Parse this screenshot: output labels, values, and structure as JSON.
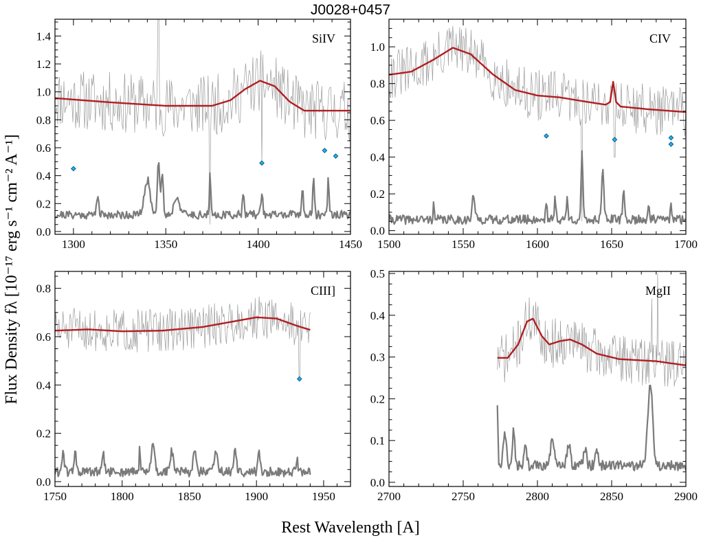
{
  "figure": {
    "title": "J0028+0457",
    "xlabel": "Rest Wavelength [A]",
    "ylabel": "Flux Density fλ [10⁻¹⁷ erg s⁻¹ cm⁻² A⁻¹]",
    "colors": {
      "spectrum": "#9a9a9a",
      "error": "#7a7a7a",
      "model": "#b01e22",
      "absorber": "#22b4ee"
    }
  },
  "chart_data": [
    {
      "type": "line",
      "name": "SiIV",
      "label": "SiIV",
      "xlim": [
        1290,
        1450
      ],
      "ylim": [
        -0.02,
        1.52
      ],
      "xticks": [
        1300,
        1350,
        1400,
        1450
      ],
      "yticks": [
        0.0,
        0.2,
        0.4,
        0.6,
        0.8,
        1.0,
        1.2,
        1.4
      ],
      "ytick_labels": [
        "0.0",
        "0.2",
        "0.4",
        "0.6",
        "0.8",
        "1.0",
        "1.2",
        "1.4"
      ],
      "spectrum": {
        "x0": 1290,
        "x1": 1450,
        "n": 330,
        "base": 0.9,
        "noise": 0.22,
        "seed": 11,
        "spikes": [
          [
            1346,
            1.52
          ],
          [
            1374,
            0.05
          ],
          [
            1402,
            0.48
          ]
        ]
      },
      "error": {
        "x0": 1290,
        "x1": 1450,
        "n": 330,
        "base": 0.12,
        "noise": 0.03,
        "seed": 21,
        "peaks": [
          [
            1313,
            0.14,
            0.6
          ],
          [
            1340,
            0.25,
            1.5
          ],
          [
            1346,
            0.4,
            0.6
          ],
          [
            1348,
            0.3,
            0.6
          ],
          [
            1356,
            0.13,
            1.5
          ],
          [
            1374,
            0.3,
            0.35
          ],
          [
            1392,
            0.18,
            0.5
          ],
          [
            1402,
            0.17,
            0.5
          ],
          [
            1424,
            0.22,
            0.4
          ],
          [
            1430,
            0.28,
            0.4
          ],
          [
            1438,
            0.3,
            0.4
          ]
        ]
      },
      "model": [
        [
          1290,
          0.955
        ],
        [
          1320,
          0.925
        ],
        [
          1350,
          0.9
        ],
        [
          1375,
          0.9
        ],
        [
          1385,
          0.94
        ],
        [
          1393,
          1.02
        ],
        [
          1401,
          1.08
        ],
        [
          1409,
          1.04
        ],
        [
          1417,
          0.93
        ],
        [
          1425,
          0.865
        ],
        [
          1450,
          0.865
        ]
      ],
      "absorbers": [
        [
          1300,
          0.45
        ],
        [
          1402,
          0.49
        ],
        [
          1436,
          0.58
        ],
        [
          1442,
          0.54
        ]
      ]
    },
    {
      "type": "line",
      "name": "CIV",
      "label": "CIV",
      "xlim": [
        1500,
        1700
      ],
      "ylim": [
        -0.02,
        1.15
      ],
      "xticks": [
        1500,
        1550,
        1600,
        1650,
        1700
      ],
      "yticks": [
        0.0,
        0.2,
        0.4,
        0.6,
        0.8,
        1.0
      ],
      "ytick_labels": [
        "0.0",
        "0.2",
        "0.4",
        "0.6",
        "0.8",
        "1.0"
      ],
      "spectrum": {
        "x0": 1500,
        "x1": 1700,
        "n": 340,
        "base": 0.78,
        "noise": 0.14,
        "seed": 31,
        "spikes": [
          [
            1630,
            0.05
          ],
          [
            1652,
            0.4
          ]
        ]
      },
      "error": {
        "x0": 1500,
        "x1": 1700,
        "n": 340,
        "base": 0.06,
        "noise": 0.025,
        "seed": 41,
        "peaks": [
          [
            1530,
            0.1,
            0.35
          ],
          [
            1557,
            0.14,
            0.8
          ],
          [
            1606,
            0.1,
            0.5
          ],
          [
            1612,
            0.12,
            0.5
          ],
          [
            1620,
            0.12,
            0.5
          ],
          [
            1630,
            0.35,
            0.6
          ],
          [
            1644,
            0.28,
            0.8
          ],
          [
            1658,
            0.16,
            0.6
          ],
          [
            1675,
            0.1,
            0.5
          ],
          [
            1690,
            0.08,
            0.5
          ]
        ]
      },
      "model": [
        [
          1500,
          0.848
        ],
        [
          1515,
          0.865
        ],
        [
          1530,
          0.93
        ],
        [
          1543,
          0.995
        ],
        [
          1555,
          0.96
        ],
        [
          1570,
          0.85
        ],
        [
          1585,
          0.765
        ],
        [
          1600,
          0.735
        ],
        [
          1615,
          0.725
        ],
        [
          1630,
          0.705
        ],
        [
          1646,
          0.685
        ],
        [
          1649,
          0.7
        ],
        [
          1651,
          0.81
        ],
        [
          1653,
          0.7
        ],
        [
          1656,
          0.675
        ],
        [
          1675,
          0.66
        ],
        [
          1700,
          0.645
        ]
      ],
      "absorbers": [
        [
          1606,
          0.515
        ],
        [
          1652,
          0.495
        ],
        [
          1690,
          0.505
        ],
        [
          1690,
          0.47
        ]
      ]
    },
    {
      "type": "line",
      "name": "CIII]",
      "label": "CIII]",
      "xlim": [
        1750,
        1970
      ],
      "ylim": [
        -0.02,
        0.87
      ],
      "xticks": [
        1750,
        1800,
        1850,
        1900,
        1950
      ],
      "yticks": [
        0.0,
        0.2,
        0.4,
        0.6,
        0.8
      ],
      "ytick_labels": [
        "0.0",
        "0.2",
        "0.4",
        "0.6",
        "0.8"
      ],
      "spectrum": {
        "x0": 1750,
        "x1": 1940,
        "n": 320,
        "base": 0.64,
        "noise": 0.09,
        "seed": 51,
        "spikes": [
          [
            1932,
            0.42
          ]
        ]
      },
      "error": {
        "x0": 1750,
        "x1": 1940,
        "n": 320,
        "base": 0.04,
        "noise": 0.02,
        "seed": 61,
        "peaks": [
          [
            1756,
            0.09,
            0.8
          ],
          [
            1765,
            0.1,
            0.7
          ],
          [
            1786,
            0.07,
            0.8
          ],
          [
            1813,
            0.1,
            0.4
          ],
          [
            1823,
            0.12,
            1.2
          ],
          [
            1837,
            0.09,
            1.0
          ],
          [
            1854,
            0.1,
            1.0
          ],
          [
            1870,
            0.09,
            1.2
          ],
          [
            1884,
            0.08,
            1.0
          ],
          [
            1902,
            0.08,
            0.8
          ],
          [
            1930,
            0.05,
            0.8
          ]
        ]
      },
      "model": [
        [
          1750,
          0.625
        ],
        [
          1775,
          0.63
        ],
        [
          1800,
          0.622
        ],
        [
          1830,
          0.625
        ],
        [
          1860,
          0.64
        ],
        [
          1880,
          0.66
        ],
        [
          1900,
          0.68
        ],
        [
          1915,
          0.675
        ],
        [
          1930,
          0.645
        ],
        [
          1940,
          0.628
        ]
      ],
      "absorbers": [
        [
          1932,
          0.425
        ]
      ]
    },
    {
      "type": "line",
      "name": "MgII",
      "label": "MgII",
      "xlim": [
        2700,
        2900
      ],
      "ylim": [
        -0.01,
        0.505
      ],
      "xticks": [
        2700,
        2750,
        2800,
        2850,
        2900
      ],
      "yticks": [
        0.0,
        0.1,
        0.2,
        0.3,
        0.4,
        0.5
      ],
      "ytick_labels": [
        "0.0",
        "0.1",
        "0.2",
        "0.3",
        "0.4",
        "0.5"
      ],
      "spectrum": {
        "x0": 2773,
        "x1": 2900,
        "n": 260,
        "base": 0.31,
        "noise": 0.06,
        "seed": 71,
        "spikes": [
          [
            2877,
            0.44
          ],
          [
            2881,
            0.5
          ]
        ]
      },
      "error": {
        "x0": 2773,
        "x1": 2900,
        "n": 260,
        "base": 0.04,
        "noise": 0.012,
        "seed": 81,
        "peaks": [
          [
            2773,
            0.15,
            0.4
          ],
          [
            2778,
            0.08,
            1.0
          ],
          [
            2784,
            0.09,
            0.8
          ],
          [
            2792,
            0.05,
            0.8
          ],
          [
            2810,
            0.06,
            1.2
          ],
          [
            2821,
            0.05,
            1.2
          ],
          [
            2832,
            0.04,
            1.0
          ],
          [
            2840,
            0.04,
            1.0
          ],
          [
            2876,
            0.2,
            1.6
          ]
        ]
      },
      "model": [
        [
          2773,
          0.298
        ],
        [
          2780,
          0.298
        ],
        [
          2787,
          0.33
        ],
        [
          2793,
          0.385
        ],
        [
          2797,
          0.392
        ],
        [
          2803,
          0.35
        ],
        [
          2808,
          0.33
        ],
        [
          2815,
          0.338
        ],
        [
          2822,
          0.342
        ],
        [
          2830,
          0.33
        ],
        [
          2840,
          0.308
        ],
        [
          2855,
          0.295
        ],
        [
          2880,
          0.29
        ],
        [
          2900,
          0.28
        ]
      ],
      "absorbers": []
    }
  ]
}
